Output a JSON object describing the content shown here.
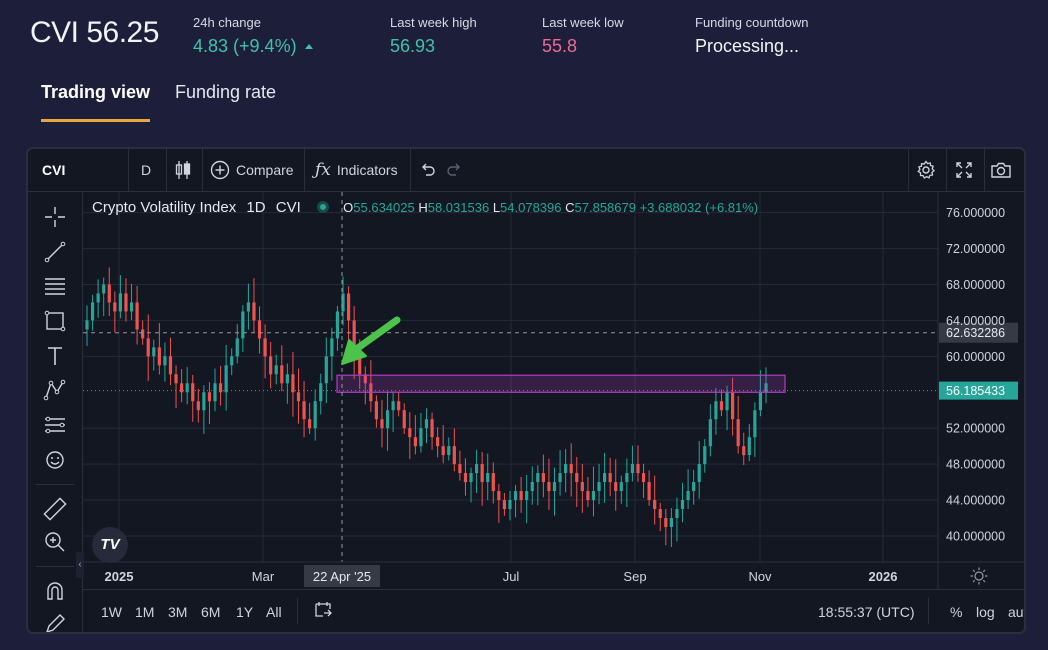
{
  "header": {
    "title": "CVI 56.25",
    "stats": [
      {
        "label": "24h change",
        "value": "4.83 (+9.4%)",
        "color": "#3fc2a8",
        "icon": "caret-up-icon"
      },
      {
        "label": "Last week high",
        "value": "56.93",
        "color": "#3fc2a8"
      },
      {
        "label": "Last week low",
        "value": "55.8",
        "color": "#ec6c92"
      },
      {
        "label": "Funding countdown",
        "value": "Processing...",
        "color": "#f2f3f7"
      }
    ]
  },
  "tabs": [
    {
      "label": "Trading view",
      "active": true
    },
    {
      "label": "Funding rate",
      "active": false
    }
  ],
  "toolbar": {
    "symbol": "CVI",
    "interval": "D",
    "compare_label": "Compare",
    "indicators_label": "Indicators"
  },
  "legend": {
    "name": "Crypto Volatility Index",
    "interval": "1D",
    "symbol": "CVI",
    "o_label": "O",
    "o_value": "55.634025",
    "h_label": "H",
    "h_value": "58.031536",
    "l_label": "L",
    "l_value": "54.078396",
    "c_label": "C",
    "c_value": "57.858679",
    "change": "+3.688032 (+6.81%)"
  },
  "chart_data": {
    "type": "candlestick",
    "symbol": "CVI",
    "interval": "1D",
    "x_ticks": [
      "2025",
      "Mar",
      "Jul",
      "Sep",
      "Nov",
      "2026"
    ],
    "crosshair_x_label": "22 Apr '25",
    "crosshair_y_label": "62.632286",
    "crosshair_y_value": 62.632286,
    "last_price_label": "56.185433",
    "last_price": 56.185433,
    "y_ticks": [
      "76.000000",
      "72.000000",
      "68.000000",
      "64.000000",
      "60.000000",
      "52.000000",
      "48.000000",
      "44.000000",
      "40.000000"
    ],
    "y_tick_values": [
      76,
      72,
      68,
      64,
      60,
      52,
      48,
      44,
      40
    ],
    "ylim": [
      37.1,
      78.3
    ],
    "highlight_zone": {
      "from": "22 Apr '25",
      "to": "Nov 2025",
      "low": 56.0,
      "high": 57.9
    },
    "approx_closes": [
      64,
      66,
      67,
      68,
      66,
      65,
      67,
      65,
      66,
      63,
      62,
      60,
      61,
      59,
      60,
      58,
      57,
      56,
      57,
      55,
      54,
      56,
      55,
      57,
      56,
      59,
      60,
      62,
      65,
      66,
      64,
      62,
      60,
      58,
      59,
      57,
      58,
      56,
      55,
      53,
      52,
      55,
      57,
      60,
      62,
      65,
      67,
      64,
      60,
      58,
      57,
      55,
      53,
      52,
      54,
      55,
      54,
      52,
      51,
      50,
      52,
      53,
      51,
      50,
      49,
      50,
      48,
      47,
      46,
      47,
      48,
      46,
      47,
      45,
      44,
      43,
      44,
      45,
      44,
      45,
      46,
      47,
      46,
      45,
      46,
      47,
      48,
      47,
      46,
      45,
      44,
      45,
      46,
      47,
      46,
      45,
      46,
      47,
      48,
      47,
      46,
      44,
      43,
      42,
      41,
      42,
      43,
      44,
      45,
      46,
      48,
      50,
      53,
      55,
      54,
      56,
      53,
      50,
      49,
      51,
      54,
      56,
      57
    ]
  },
  "bottom_bar": {
    "ranges": [
      "1W",
      "1M",
      "3M",
      "6M",
      "1Y",
      "All"
    ],
    "time": "18:55:37 (UTC)",
    "percent": "%",
    "log": "log",
    "auto": "auto"
  },
  "colors": {
    "background": "#1d1e3a",
    "panel": "#131722",
    "up": "#26a69a",
    "down": "#ef5350",
    "accent_tab": "#e7a73c",
    "zone": "#b03ec0",
    "arrow": "#4cc44c"
  }
}
